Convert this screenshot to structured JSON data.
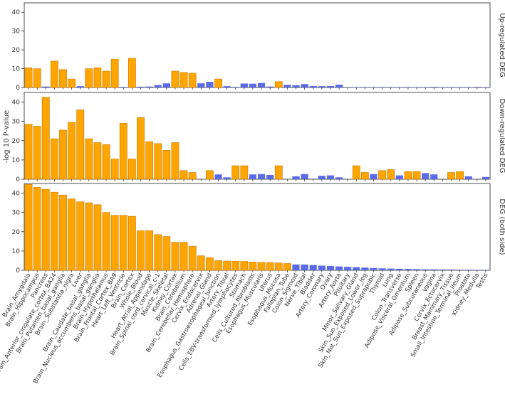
{
  "chart_data": {
    "type": "bar",
    "ylabel": "-log 10 P-value",
    "colors": {
      "significant": "#FFA500",
      "nonsignificant": "#5B6BE8",
      "edge": "#C77800"
    },
    "categories": [
      "Brain_Amygdala",
      "Brain_Hippocampus",
      "Pancreas",
      "Brain_Anterior_cingulate_cortex_BA24",
      "Brain_Putamen_basal_ganglia",
      "Brain_Substantia_nigra",
      "Liver",
      "Brain_Caudate_basal_ganglia",
      "Brain_Nucleus_accumbens_basal_ganglia",
      "Brain_Hypothalamus",
      "Brain_Frontal_Cortex_BA9",
      "Heart_Left_Ventricle",
      "Brain_Cortex",
      "Whole_Blood",
      "Heart_Atrial_Appendage",
      "Brain_Spinal_cord_cervical_c-1",
      "Muscle_Skeletal",
      "Kidney_Cortex",
      "Brain_Cerebellum",
      "Brain_Cerebellar_Hemisphere",
      "Cervix_Endocervix",
      "Adrenal_Gland",
      "Esophagus_Gastroesophageal_Junction",
      "Artery_Tibial",
      "Cells_EBV-transformed_lymphocytes",
      "Stomach",
      "Cells_Cultured_fibroblasts",
      "Esophagus_Muscularis",
      "Uterus",
      "Esophagus_Mucosa",
      "Fallopian_Tube",
      "Colon_Sigmoid",
      "Nerve_Tibial",
      "Bladder",
      "Artery_Coronary",
      "Ovary",
      "Artery_Aorta",
      "Pituitary",
      "Minor_Salivary_Gland",
      "Skin_Sun_Exposed_Lower_leg",
      "Skin_Not_Sun_Exposed_Suprapubic",
      "Thyroid",
      "Lung",
      "Colon_Transverse",
      "Adipose_Visceral_Omentum",
      "Spleen",
      "Adipose_Subcutaneous",
      "Vagina",
      "Cervix_Ectocervix",
      "Breast_Mammary_Tissue",
      "Small_Intestine_Terminal_Ileum",
      "Prostate",
      "Kidney_Medulla",
      "Testis"
    ],
    "panels": [
      {
        "title": "Up-regulated DEG",
        "ylim": [
          0,
          45
        ],
        "yticks": [
          0,
          10,
          20,
          30,
          40
        ],
        "values": [
          10.5,
          10.0,
          0.5,
          14.0,
          9.5,
          4.5,
          0.7,
          10.0,
          10.5,
          8.7,
          15.0,
          0.3,
          15.5,
          0.4,
          0.5,
          1.3,
          2.2,
          8.7,
          8.0,
          7.6,
          2.2,
          3.0,
          4.5,
          0.7,
          0.3,
          2.1,
          2.0,
          2.4,
          0.5,
          3.1,
          1.4,
          1.2,
          1.8,
          0.8,
          0.7,
          0.8,
          1.5,
          0.2,
          0.2,
          0.2,
          0.2,
          0.2,
          0.2,
          0.2,
          0.2,
          0.2,
          0.2,
          0.3,
          0.2,
          0.2,
          0.2,
          0.2,
          0.3,
          0.2
        ],
        "significant": [
          true,
          true,
          false,
          true,
          true,
          true,
          false,
          true,
          true,
          true,
          true,
          false,
          true,
          false,
          false,
          false,
          false,
          true,
          true,
          true,
          false,
          false,
          true,
          false,
          false,
          false,
          false,
          false,
          false,
          true,
          false,
          false,
          false,
          false,
          false,
          false,
          false,
          false,
          false,
          false,
          false,
          false,
          false,
          false,
          false,
          false,
          false,
          false,
          false,
          false,
          false,
          false,
          false,
          false
        ]
      },
      {
        "title": "Down-regulated DEG",
        "ylim": [
          0,
          45
        ],
        "yticks": [
          0,
          10,
          20,
          30,
          40
        ],
        "values": [
          28.5,
          27.5,
          42.5,
          21.0,
          25.5,
          29.5,
          36.0,
          21.0,
          19.0,
          18.0,
          10.5,
          29.0,
          10.5,
          32.0,
          19.5,
          18.5,
          15.0,
          19.0,
          4.5,
          3.5,
          0.0,
          4.5,
          2.5,
          1.0,
          7.0,
          7.0,
          2.5,
          2.7,
          2.2,
          7.0,
          0.0,
          1.5,
          2.7,
          0.3,
          1.8,
          2.0,
          1.0,
          0.0,
          7.0,
          3.5,
          2.7,
          4.5,
          5.0,
          2.0,
          4.0,
          4.0,
          3.2,
          2.5,
          0.0,
          3.5,
          4.0,
          1.5,
          0.0,
          1.2
        ],
        "significant": [
          true,
          true,
          true,
          true,
          true,
          true,
          true,
          true,
          true,
          true,
          true,
          true,
          true,
          true,
          true,
          true,
          true,
          true,
          true,
          true,
          false,
          true,
          false,
          false,
          true,
          true,
          false,
          false,
          false,
          true,
          false,
          false,
          false,
          false,
          false,
          false,
          false,
          false,
          true,
          true,
          false,
          true,
          true,
          false,
          true,
          true,
          false,
          false,
          false,
          true,
          true,
          false,
          false,
          false
        ]
      },
      {
        "title": "DEG (both side)",
        "ylim": [
          0,
          45
        ],
        "yticks": [
          0,
          10,
          20,
          30,
          40
        ],
        "values": [
          44.5,
          43.0,
          42.0,
          40.5,
          39.0,
          37.0,
          35.5,
          35.0,
          34.0,
          30.0,
          28.5,
          28.5,
          28.0,
          20.5,
          20.5,
          18.5,
          17.5,
          14.5,
          14.5,
          12.5,
          7.5,
          6.5,
          5.0,
          4.8,
          4.7,
          4.6,
          4.3,
          4.1,
          4.0,
          3.8,
          3.5,
          3.0,
          3.0,
          2.7,
          2.4,
          2.2,
          2.0,
          1.8,
          1.6,
          1.4,
          1.2,
          1.0,
          0.9,
          0.8,
          0.7,
          0.6,
          0.5,
          0.5,
          0.4,
          0.4,
          0.3,
          0.3,
          0.2,
          0.2
        ],
        "significant": [
          true,
          true,
          true,
          true,
          true,
          true,
          true,
          true,
          true,
          true,
          true,
          true,
          true,
          true,
          true,
          true,
          true,
          true,
          true,
          true,
          true,
          true,
          true,
          true,
          true,
          true,
          true,
          true,
          true,
          true,
          true,
          false,
          false,
          false,
          false,
          false,
          false,
          false,
          false,
          false,
          false,
          false,
          false,
          false,
          false,
          false,
          false,
          false,
          false,
          false,
          false,
          false,
          false,
          false
        ]
      }
    ]
  }
}
